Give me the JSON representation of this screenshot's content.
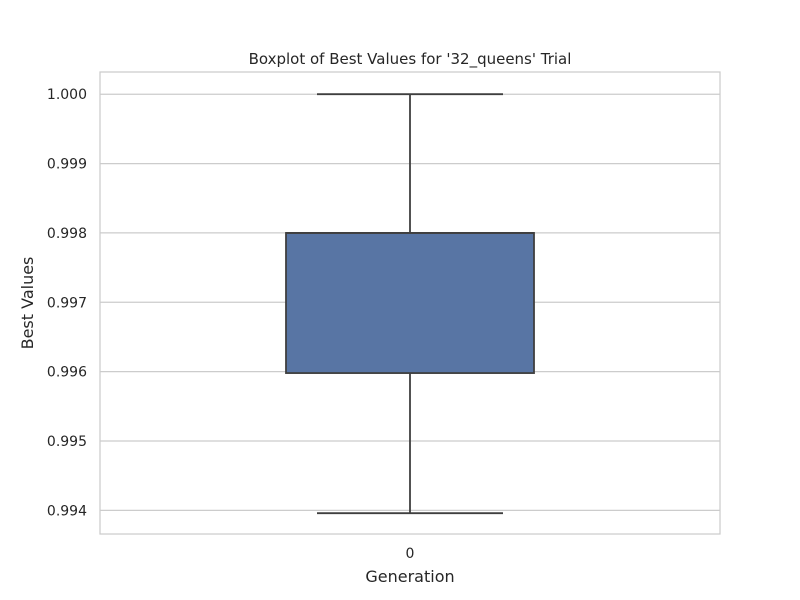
{
  "chart_data": {
    "type": "box",
    "title": "Boxplot of Best Values for '32_queens' Trial",
    "xlabel": "Generation",
    "ylabel": "Best Values",
    "categories": [
      "0"
    ],
    "boxes": [
      {
        "category": "0",
        "min": 0.99396,
        "q1": 0.99598,
        "median": 0.998,
        "q3": 0.998,
        "max": 1.0
      }
    ],
    "ylim": [
      0.99366,
      1.00032
    ],
    "yticks": [
      0.994,
      0.995,
      0.996,
      0.997,
      0.998,
      0.999,
      1.0
    ],
    "ytick_labels": [
      "0.994",
      "0.995",
      "0.996",
      "0.997",
      "0.998",
      "0.999",
      "1.000"
    ],
    "grid": true,
    "colors": {
      "box_fill": "#5875a4",
      "lines": "#3f3f3f",
      "grid": "#cccccc",
      "frame": "#cccccc"
    }
  }
}
